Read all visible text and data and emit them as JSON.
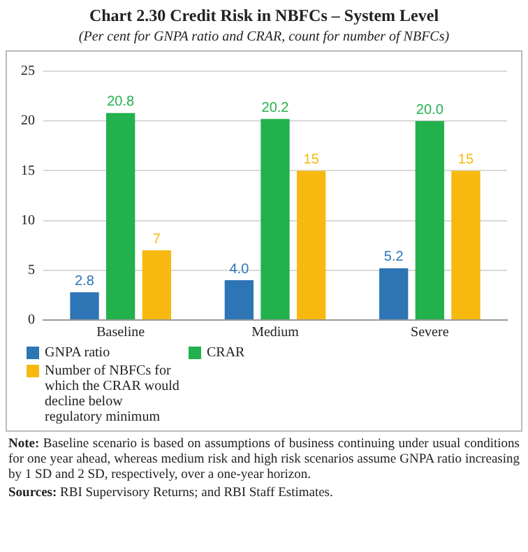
{
  "chart_data": {
    "type": "bar",
    "title": "Chart 2.30 Credit Risk in NBFCs – System Level",
    "subtitle": "(Per cent for GNPA ratio and CRAR, count for number of NBFCs)",
    "categories": [
      "Baseline",
      "Medium",
      "Severe"
    ],
    "series": [
      {
        "name": "GNPA ratio",
        "color": "#2e75b6",
        "values": [
          2.8,
          4.0,
          5.2
        ],
        "value_labels": [
          "2.8",
          "4.0",
          "5.2"
        ]
      },
      {
        "name": "CRAR",
        "color": "#22b14c",
        "values": [
          20.8,
          20.2,
          20.0
        ],
        "value_labels": [
          "20.8",
          "20.2",
          "20.0"
        ]
      },
      {
        "name": "Number of NBFCs for which the CRAR would decline below regulatory minimum",
        "color": "#f7b90f",
        "values": [
          7,
          15,
          15
        ],
        "value_labels": [
          "7",
          "15",
          "15"
        ]
      }
    ],
    "ylim": [
      0,
      25
    ],
    "yticks": [
      0,
      5,
      10,
      15,
      20,
      25
    ],
    "grid": "y",
    "legend": "bottom",
    "annotations": [
      "Note: Baseline scenario is based on assumptions of business continuing under usual conditions for one year ahead, whereas medium risk and high risk scenarios assume GNPA ratio increasing by 1 SD and 2 SD, respectively, over a one-year horizon.",
      "Sources: RBI Supervisory Returns; and RBI Staff Estimates."
    ]
  }
}
